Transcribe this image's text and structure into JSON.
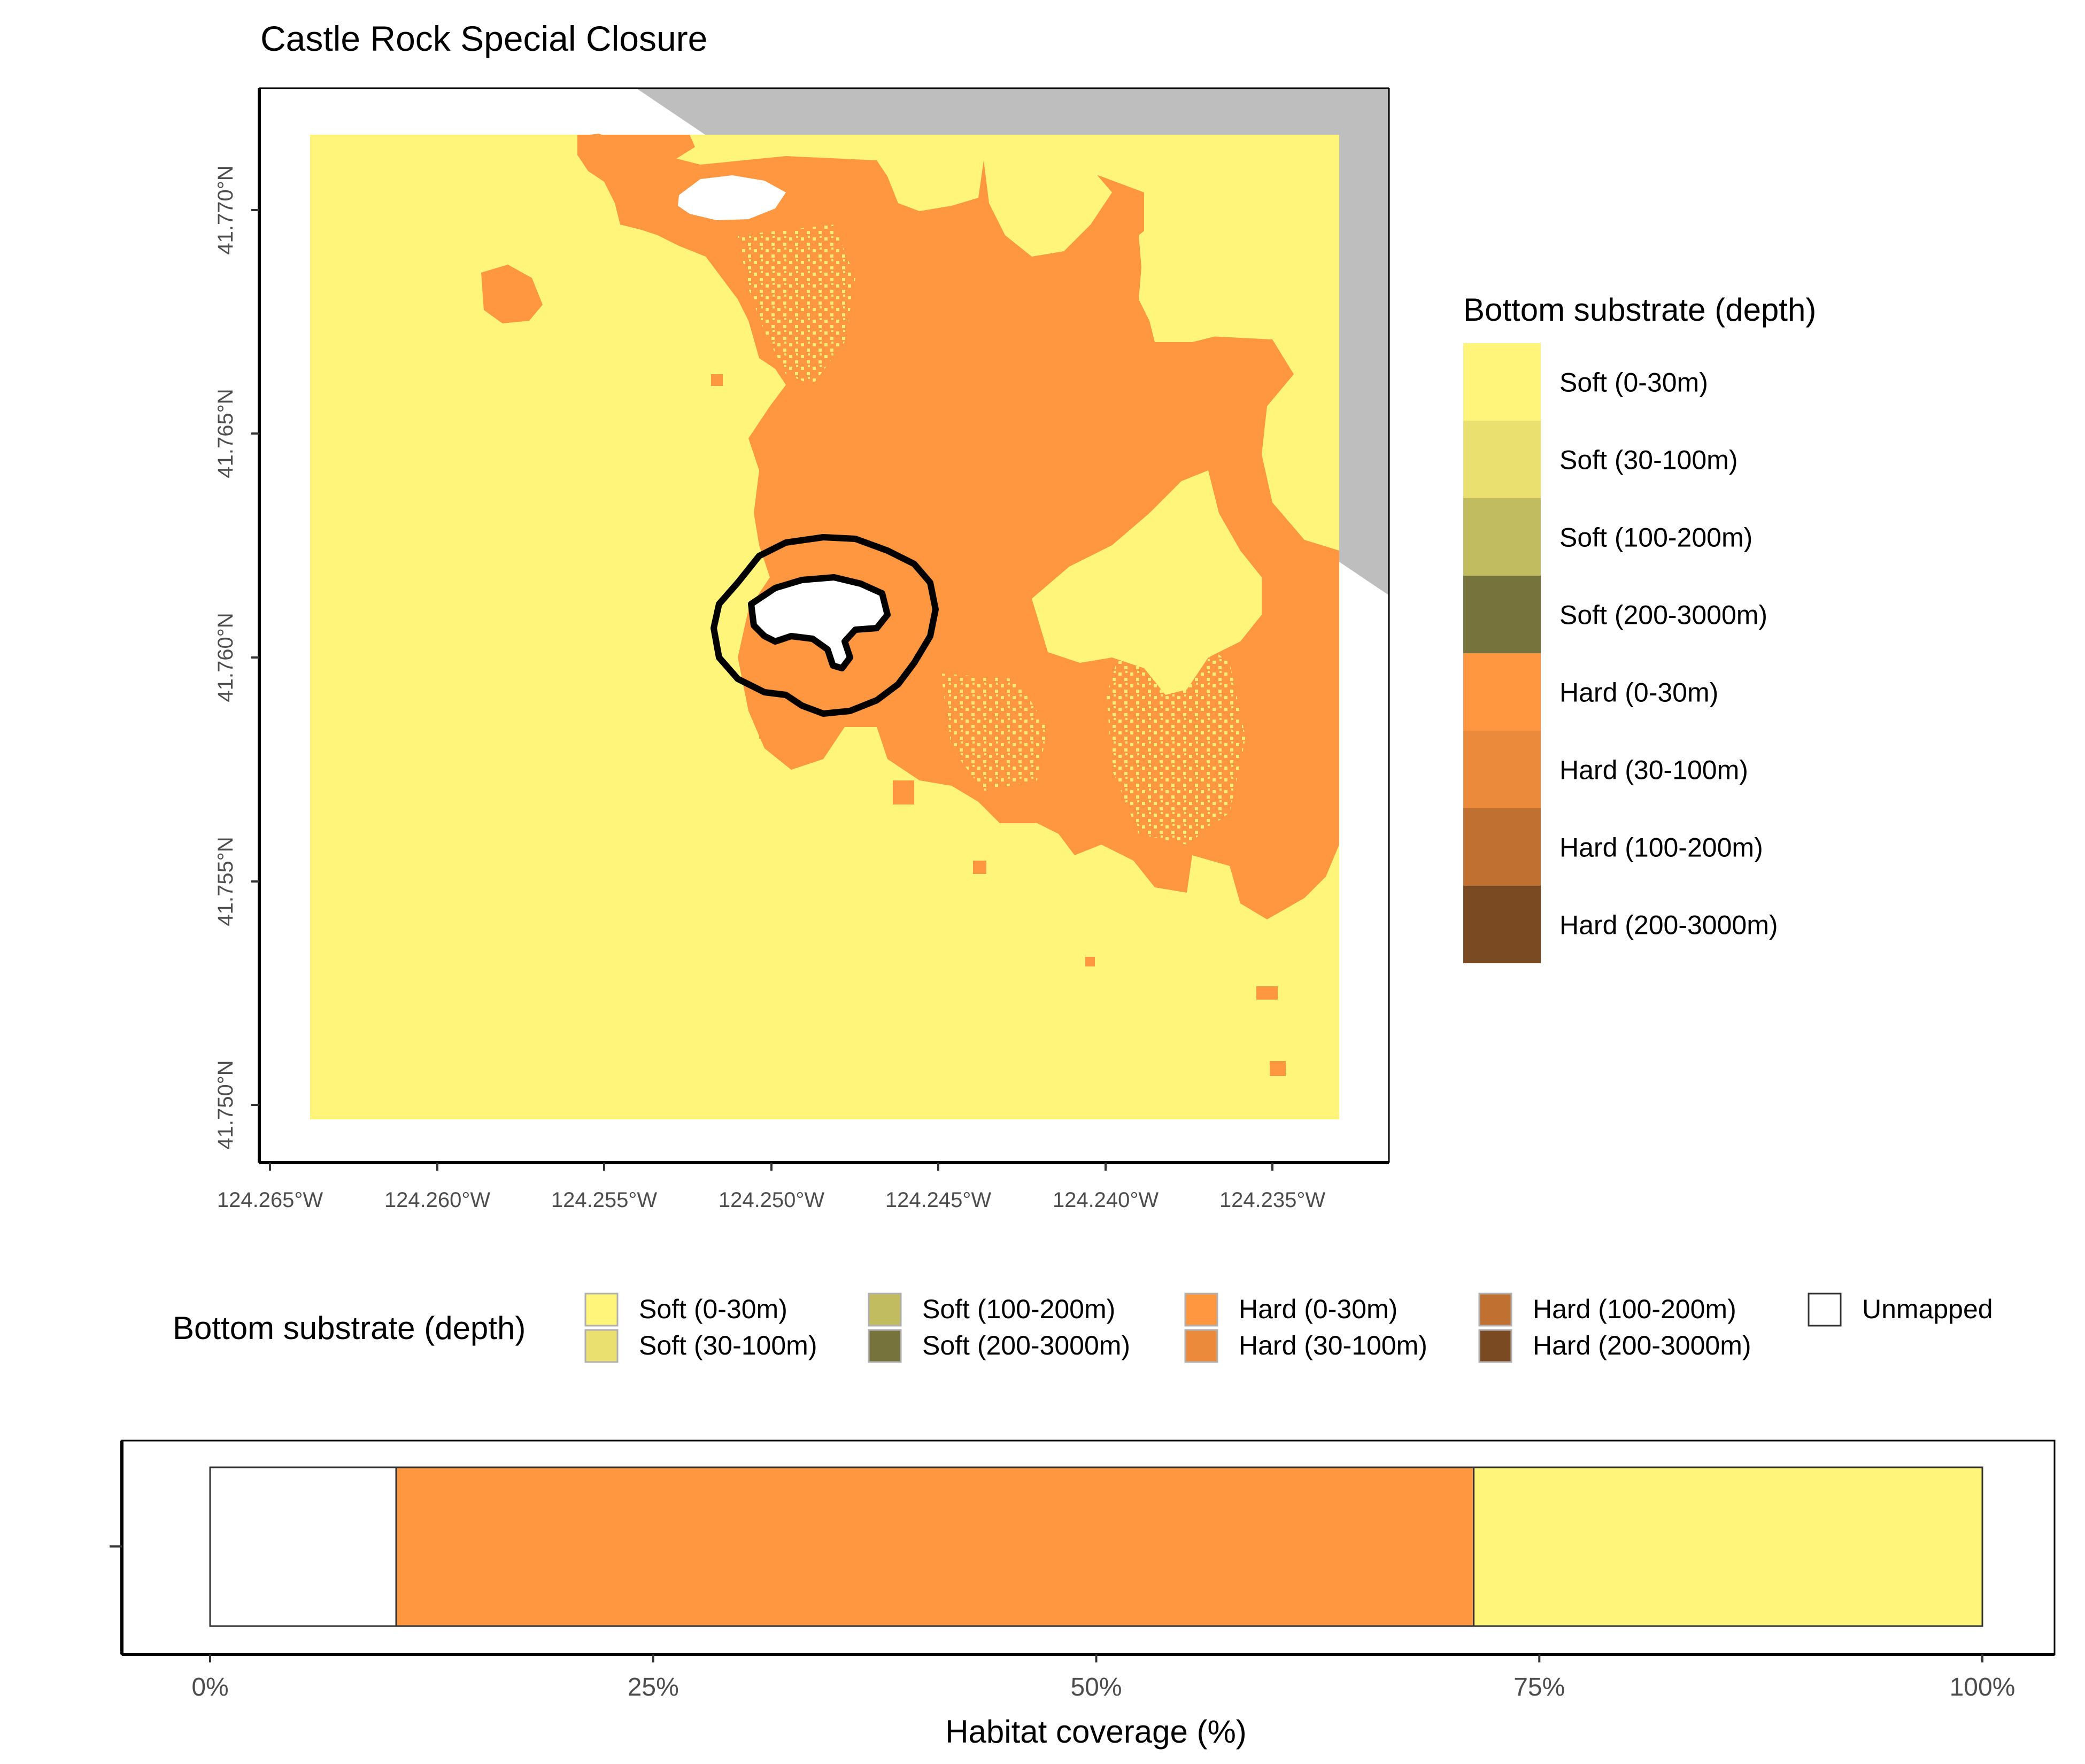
{
  "map": {
    "title": "Castle Rock Special Closure",
    "x_ticks": [
      "124.265°W",
      "124.260°W",
      "124.255°W",
      "124.250°W",
      "124.245°W",
      "124.240°W",
      "124.235°W"
    ],
    "y_ticks": [
      "41.770°N",
      "41.765°N",
      "41.760°N",
      "41.755°N",
      "41.750°N"
    ],
    "land_color": "#BEBEBE",
    "boundary_color": "#000000"
  },
  "legend_right": {
    "title": "Bottom substrate (depth)",
    "items": [
      {
        "label": "Soft (0-30m)",
        "color": "#FFF57A"
      },
      {
        "label": "Soft (30-100m)",
        "color": "#EAE070"
      },
      {
        "label": "Soft (100-200m)",
        "color": "#C2BC60"
      },
      {
        "label": "Soft (200-3000m)",
        "color": "#77733C"
      },
      {
        "label": "Hard (0-30m)",
        "color": "#FF9640"
      },
      {
        "label": "Hard (30-100m)",
        "color": "#EB8A3A"
      },
      {
        "label": "Hard (100-200m)",
        "color": "#C07030"
      },
      {
        "label": "Hard (200-3000m)",
        "color": "#7A4A22"
      }
    ]
  },
  "legend_bottom": {
    "title": "Bottom substrate (depth)",
    "items": [
      {
        "label": "Soft (0-30m)",
        "color": "#FFF57A"
      },
      {
        "label": "Soft (30-100m)",
        "color": "#EAE070"
      },
      {
        "label": "Soft (100-200m)",
        "color": "#C2BC60"
      },
      {
        "label": "Soft (200-3000m)",
        "color": "#77733C"
      },
      {
        "label": "Hard (0-30m)",
        "color": "#FF9640"
      },
      {
        "label": "Hard (30-100m)",
        "color": "#EB8A3A"
      },
      {
        "label": "Hard (100-200m)",
        "color": "#C07030"
      },
      {
        "label": "Hard (200-3000m)",
        "color": "#7A4A22"
      },
      {
        "label": "Unmapped",
        "color": "#FFFFFF"
      }
    ]
  },
  "chart_data": {
    "type": "bar",
    "orientation": "horizontal-stacked",
    "xlabel": "Habitat coverage (%)",
    "x_ticks": [
      "0%",
      "25%",
      "50%",
      "75%",
      "100%"
    ],
    "xlim": [
      0,
      100
    ],
    "series": [
      {
        "name": "Unmapped",
        "values": [
          10.5
        ],
        "color": "#FFFFFF"
      },
      {
        "name": "Hard (0-30m)",
        "values": [
          60.8
        ],
        "color": "#FF9640"
      },
      {
        "name": "Soft (0-30m)",
        "values": [
          28.7
        ],
        "color": "#FFF57A"
      }
    ]
  }
}
